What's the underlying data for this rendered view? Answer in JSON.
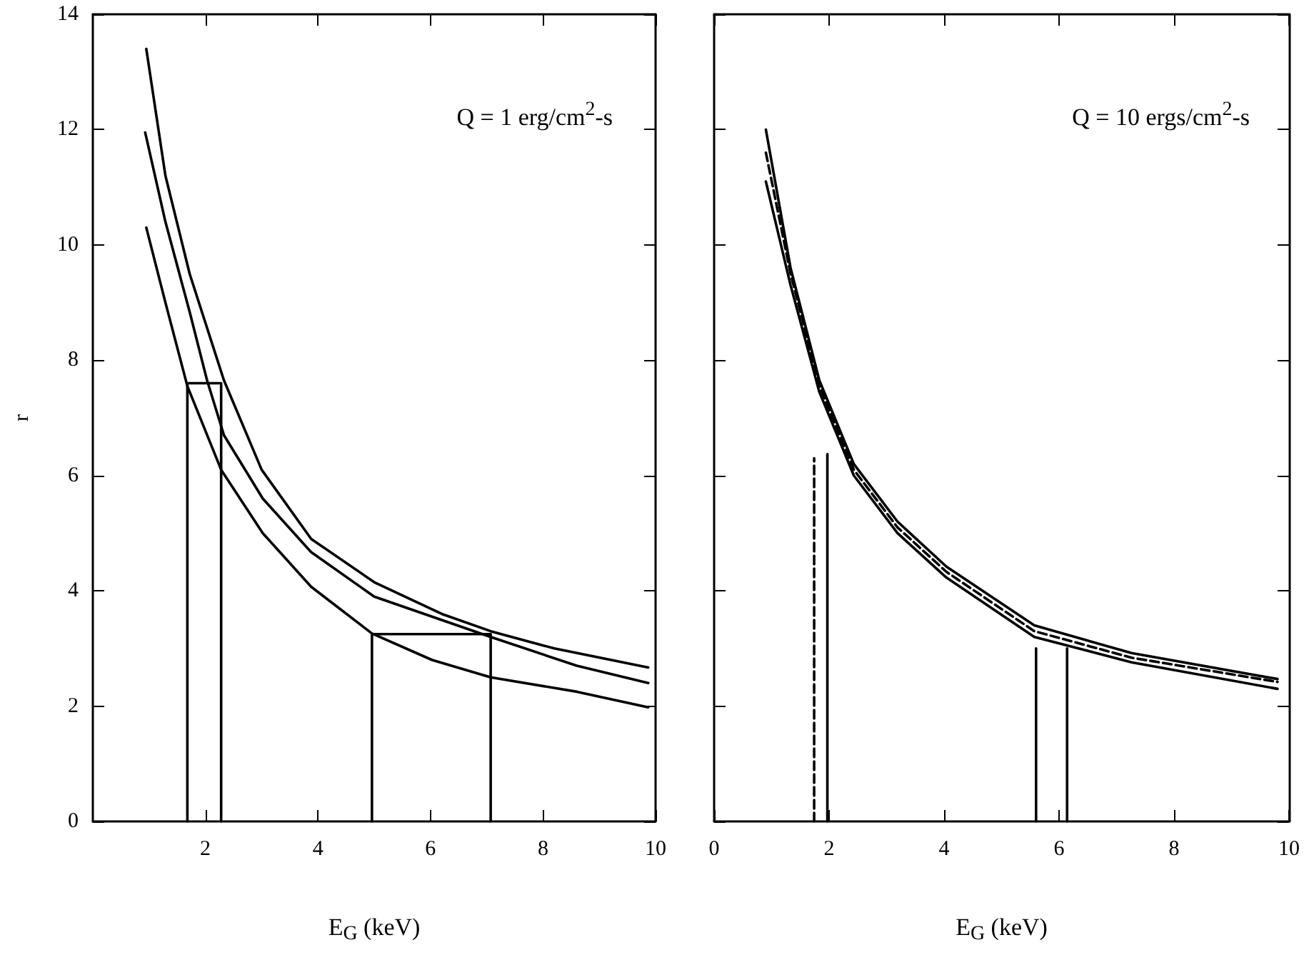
{
  "chart_data": [
    {
      "type": "line",
      "ylabel": "r",
      "xlabel": "E$_{G}$ (keV)",
      "annotations": [
        "Q = 1 erg/cm$^{2}$-s"
      ],
      "xlim": [
        0,
        10
      ],
      "xticks": [
        2,
        4,
        6,
        8,
        10
      ],
      "ylim": [
        0,
        14
      ],
      "yticks": [
        0,
        2,
        4,
        6,
        8,
        10,
        12,
        14
      ],
      "marker": "none",
      "series": [
        {
          "color": "#000000",
          "line_style": "solid",
          "x": [
            0.95,
            1.29,
            1.72,
            2.33,
            3.0,
            3.88,
            5.0,
            6.2,
            7.07,
            8.2,
            9.87
          ],
          "values": [
            13.4,
            11.2,
            9.5,
            7.65,
            6.1,
            4.9,
            4.15,
            3.6,
            3.3,
            3.0,
            2.67
          ]
        },
        {
          "color": "#000000",
          "line_style": "solid",
          "x": [
            0.93,
            1.29,
            1.72,
            2.03,
            2.33,
            3.02,
            3.88,
            5.0,
            7.07,
            8.6,
            9.87
          ],
          "values": [
            11.95,
            10.4,
            8.84,
            7.65,
            6.7,
            5.6,
            4.67,
            3.9,
            3.2,
            2.7,
            2.4
          ]
        },
        {
          "color": "#000000",
          "line_style": "solid",
          "x": [
            0.95,
            1.29,
            1.68,
            2.28,
            3.02,
            3.88,
            4.96,
            6.03,
            7.07,
            8.6,
            9.87
          ],
          "values": [
            10.3,
            9.0,
            7.55,
            6.1,
            5.0,
            4.07,
            3.26,
            2.8,
            2.5,
            2.25,
            1.98
          ]
        },
        {
          "color": "#000000",
          "line_style": "solid",
          "x": [
            1.68,
            1.68,
            2.28,
            2.28
          ],
          "values": [
            0,
            7.6,
            7.6,
            0
          ]
        },
        {
          "color": "#000000",
          "line_style": "solid",
          "x": [
            4.96,
            4.96,
            7.07,
            7.07
          ],
          "values": [
            0,
            3.25,
            3.25,
            0
          ]
        }
      ]
    },
    {
      "type": "line",
      "xlabel": "E$_{G}$ (keV)",
      "annotations": [
        "Q = 10 ergs/cm$^{2}$-s"
      ],
      "xlim": [
        0,
        10
      ],
      "xticks": [
        0,
        2,
        4,
        6,
        8,
        10
      ],
      "ylim": [
        0,
        14
      ],
      "yticks": [
        0,
        2,
        4,
        6,
        8,
        10,
        12,
        14
      ],
      "tick_labels": "x",
      "marker": "none",
      "series": [
        {
          "color": "#000000",
          "line_style": "solid",
          "x": [
            0.9,
            1.33,
            1.83,
            2.43,
            3.19,
            4.04,
            5.57,
            7.26,
            9.8
          ],
          "values": [
            12.0,
            9.6,
            7.65,
            6.2,
            5.2,
            4.42,
            3.4,
            2.92,
            2.47
          ]
        },
        {
          "color": "#000000",
          "line_style": "dashed",
          "x": [
            0.9,
            1.33,
            1.83,
            2.43,
            3.19,
            4.04,
            5.57,
            7.26,
            9.8
          ],
          "values": [
            11.6,
            9.5,
            7.56,
            6.1,
            5.1,
            4.33,
            3.3,
            2.84,
            2.42
          ]
        },
        {
          "color": "#000000",
          "line_style": "solid",
          "x": [
            0.9,
            1.33,
            1.83,
            2.43,
            3.19,
            4.04,
            5.57,
            7.26,
            9.8
          ],
          "values": [
            11.1,
            9.3,
            7.45,
            6.0,
            5.0,
            4.23,
            3.2,
            2.76,
            2.3
          ]
        },
        {
          "color": "#000000",
          "line_style": "dashed",
          "x": [
            1.74,
            1.74
          ],
          "values": [
            0,
            6.3
          ]
        },
        {
          "color": "#000000",
          "line_style": "solid",
          "x": [
            1.97,
            1.97
          ],
          "values": [
            0,
            6.37
          ]
        },
        {
          "color": "#000000",
          "line_style": "solid",
          "x": [
            5.6,
            5.6
          ],
          "values": [
            0,
            3.0
          ]
        },
        {
          "color": "#000000",
          "line_style": "solid",
          "x": [
            6.14,
            6.14
          ],
          "values": [
            0,
            3.0
          ]
        }
      ]
    }
  ]
}
